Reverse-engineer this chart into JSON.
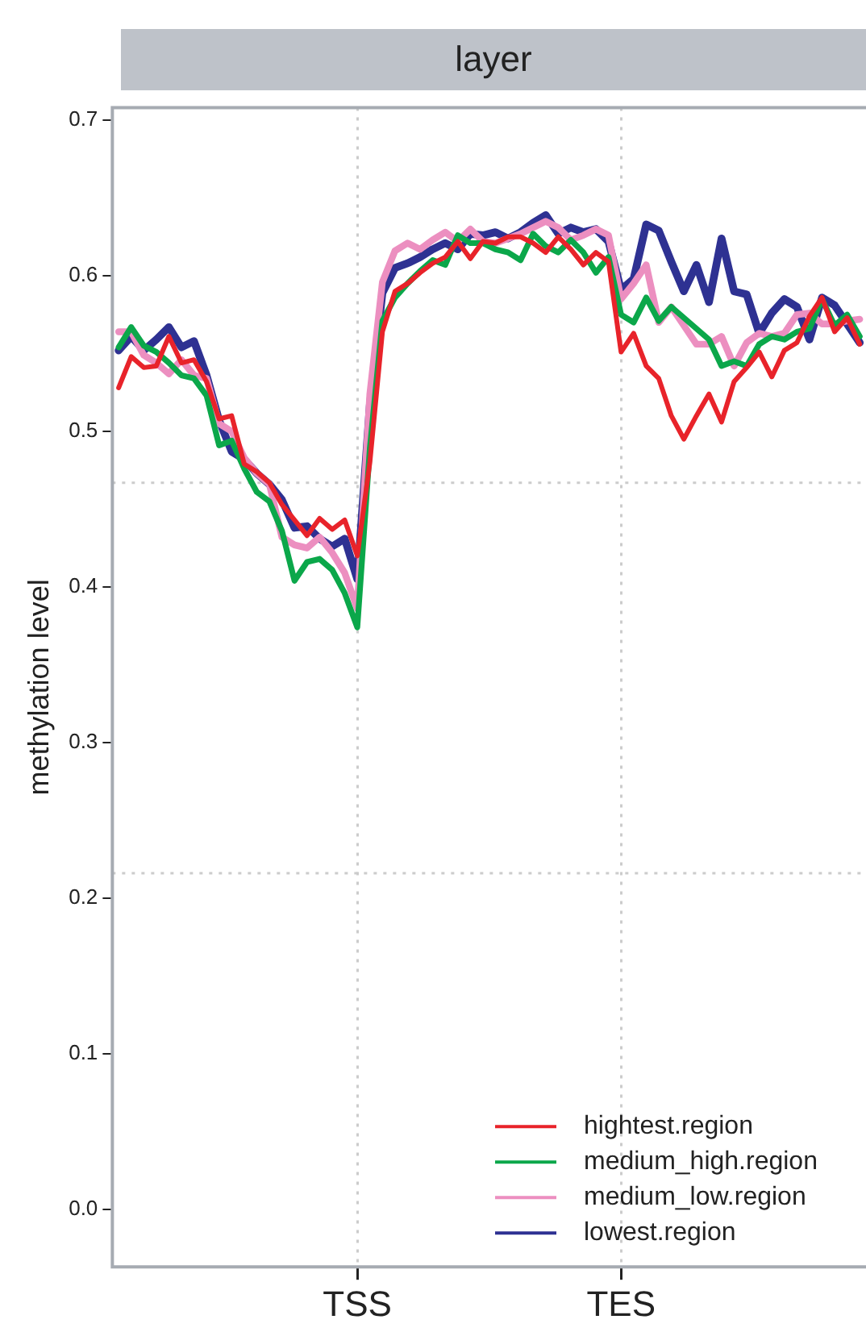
{
  "chart_data": {
    "type": "line",
    "title": "layer",
    "ylabel": "methylation level",
    "categories": [
      null,
      null,
      null,
      null,
      null,
      null,
      null,
      null,
      null,
      null,
      null,
      null,
      null,
      null,
      null,
      null,
      null,
      null,
      null,
      "TSS",
      null,
      null,
      null,
      null,
      null,
      null,
      null,
      null,
      null,
      null,
      null,
      null,
      null,
      null,
      null,
      null,
      null,
      null,
      null,
      null,
      "TES",
      null,
      null,
      null,
      null,
      null,
      null,
      null,
      null,
      null,
      null,
      null,
      null,
      null,
      null,
      null,
      null,
      null,
      null,
      null
    ],
    "ylim": [
      -0.037,
      0.708
    ],
    "yticks": [
      {
        "value": 0,
        "label": "0.0"
      },
      0.1,
      0.2,
      0.3,
      0.4,
      0.5,
      0.6,
      0.7
    ],
    "grid": "x",
    "legend": "bottom right",
    "marker": "none",
    "line_style": "solid",
    "ref_lines": [
      {
        "axis": "y",
        "value": 0.467,
        "color": "#cccccc",
        "line_style": "dotted"
      },
      {
        "axis": "y",
        "value": 0.216,
        "color": "#cccccc",
        "line_style": "dotted"
      }
    ],
    "series": [
      {
        "name": "hightest.region",
        "color": "#e8232a",
        "values": [
          0.528,
          0.548,
          0.541,
          0.542,
          0.561,
          0.544,
          0.546,
          0.532,
          0.508,
          0.51,
          0.479,
          0.474,
          0.467,
          0.453,
          0.443,
          0.433,
          0.444,
          0.437,
          0.443,
          0.42,
          0.48,
          0.564,
          0.59,
          0.595,
          0.602,
          0.608,
          0.612,
          0.622,
          0.611,
          0.622,
          0.621,
          0.625,
          0.625,
          0.621,
          0.615,
          0.625,
          0.617,
          0.607,
          0.615,
          0.609,
          0.551,
          0.563,
          0.542,
          0.534,
          0.51,
          0.495,
          0.51,
          0.524,
          0.506,
          0.532,
          0.541,
          0.551,
          0.535,
          0.552,
          0.557,
          0.574,
          0.586,
          0.564,
          0.573,
          0.556
        ]
      },
      {
        "name": "medium_high.region",
        "color": "#0ba74a",
        "values": [
          0.554,
          0.567,
          0.555,
          0.551,
          0.544,
          0.536,
          0.534,
          0.523,
          0.491,
          0.494,
          0.476,
          0.461,
          0.455,
          0.436,
          0.404,
          0.416,
          0.418,
          0.411,
          0.396,
          0.374,
          0.489,
          0.571,
          0.586,
          0.595,
          0.603,
          0.61,
          0.607,
          0.626,
          0.621,
          0.621,
          0.617,
          0.615,
          0.61,
          0.627,
          0.619,
          0.615,
          0.623,
          0.615,
          0.602,
          0.612,
          0.575,
          0.57,
          0.586,
          0.571,
          0.58,
          0.573,
          0.566,
          0.559,
          0.542,
          0.545,
          0.542,
          0.556,
          0.561,
          0.559,
          0.564,
          0.566,
          0.585,
          0.568,
          0.575,
          0.561
        ]
      },
      {
        "name": "medium_low.region",
        "color": "#ec8fc0",
        "values": [
          0.564,
          0.564,
          0.549,
          0.544,
          0.537,
          0.546,
          0.536,
          0.534,
          0.505,
          0.5,
          0.483,
          0.473,
          0.466,
          0.432,
          0.427,
          0.425,
          0.432,
          0.422,
          0.409,
          0.386,
          0.524,
          0.596,
          0.616,
          0.621,
          0.617,
          0.623,
          0.628,
          0.622,
          0.63,
          0.622,
          0.621,
          0.624,
          0.627,
          0.631,
          0.635,
          0.631,
          0.623,
          0.626,
          0.63,
          0.626,
          0.585,
          0.595,
          0.607,
          0.57,
          0.58,
          0.568,
          0.556,
          0.556,
          0.561,
          0.542,
          0.557,
          0.563,
          0.561,
          0.563,
          0.575,
          0.576,
          0.569,
          0.569,
          0.571,
          0.572
        ]
      },
      {
        "name": "lowest.region",
        "color": "#2e3192",
        "values": [
          0.552,
          0.561,
          0.552,
          0.559,
          0.567,
          0.554,
          0.558,
          0.536,
          0.507,
          0.487,
          0.482,
          0.473,
          0.466,
          0.456,
          0.438,
          0.439,
          0.431,
          0.426,
          0.431,
          0.405,
          0.517,
          0.589,
          0.605,
          0.608,
          0.612,
          0.617,
          0.621,
          0.617,
          0.627,
          0.626,
          0.628,
          0.624,
          0.628,
          0.634,
          0.639,
          0.627,
          0.631,
          0.628,
          0.63,
          0.622,
          0.591,
          0.598,
          0.633,
          0.629,
          0.609,
          0.59,
          0.607,
          0.583,
          0.624,
          0.59,
          0.588,
          0.563,
          0.576,
          0.585,
          0.58,
          0.559,
          0.586,
          0.581,
          0.569,
          0.557
        ]
      }
    ]
  }
}
